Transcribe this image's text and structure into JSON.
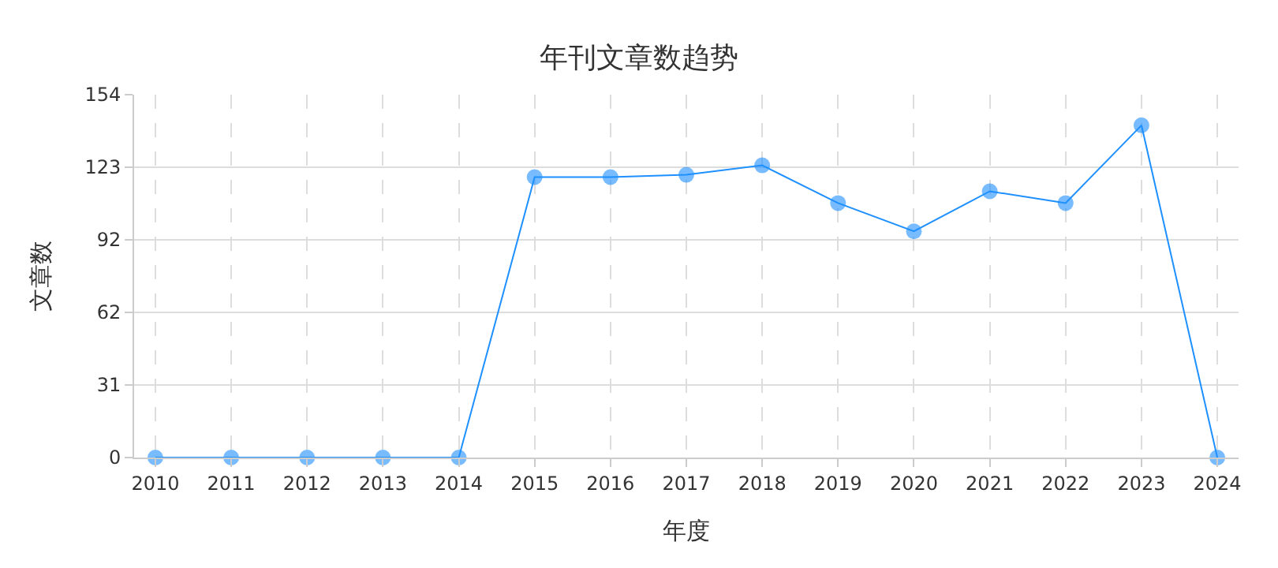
{
  "chart_data": {
    "type": "line",
    "title": "年刊文章数趋势",
    "xlabel": "年度",
    "ylabel": "文章数",
    "categories": [
      "2010",
      "2011",
      "2012",
      "2013",
      "2014",
      "2015",
      "2016",
      "2017",
      "2018",
      "2019",
      "2020",
      "2021",
      "2022",
      "2023",
      "2024"
    ],
    "series": [
      {
        "color": "#1e90ff",
        "values": [
          0,
          0,
          0,
          0,
          0,
          119,
          119,
          120,
          124,
          108,
          96,
          113,
          108,
          141,
          0
        ]
      }
    ],
    "ylim": [
      0,
      154
    ],
    "yticks": [
      0,
      {
        "value": 30.8,
        "label": "31"
      },
      {
        "value": 61.6,
        "label": "62"
      },
      {
        "value": 92.4,
        "label": "92"
      },
      {
        "value": 123.2,
        "label": "123"
      },
      154
    ],
    "grid": true,
    "marker": "circle",
    "line_style": "solid"
  }
}
